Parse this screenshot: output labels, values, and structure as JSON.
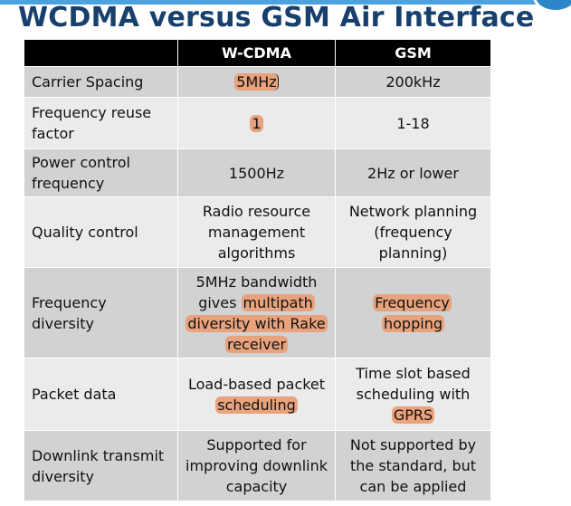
{
  "slide": {
    "title": "WCDMA versus GSM Air Interface"
  },
  "table": {
    "headers": [
      "",
      "W-CDMA",
      "GSM"
    ],
    "rows": [
      {
        "label": "Carrier Spacing",
        "wcdma": "5MHz",
        "gsm": "200kHz"
      },
      {
        "label": "Frequency reuse factor",
        "wcdma": "1",
        "gsm": "1-18"
      },
      {
        "label": "Power control frequency",
        "wcdma": "1500Hz",
        "gsm": "2Hz or lower"
      },
      {
        "label": "Quality control",
        "wcdma": "Radio resource management algorithms",
        "gsm": "Network planning (frequency planning)"
      },
      {
        "label": "Frequency diversity",
        "wcdma_plain": "5MHz bandwidth gives",
        "wcdma_highlight": "multipath diversity with Rake receiver",
        "gsm": "Frequency hopping"
      },
      {
        "label": "Packet data",
        "wcdma_plain": "Load-based packet",
        "wcdma_highlight": "scheduling",
        "gsm_plain": "Time slot based scheduling with",
        "gsm_highlight": "GPRS"
      },
      {
        "label": "Downlink transmit diversity",
        "wcdma": "Supported for improving downlink capacity",
        "gsm": "Not supported by the standard, but can be applied"
      }
    ]
  },
  "colors": {
    "title": "#17406d",
    "header_bg": "#000000",
    "row_dark": "#d2d2d2",
    "row_light": "#ebebeb",
    "highlight": "#e8a37d",
    "accent": "#2e86c8"
  }
}
